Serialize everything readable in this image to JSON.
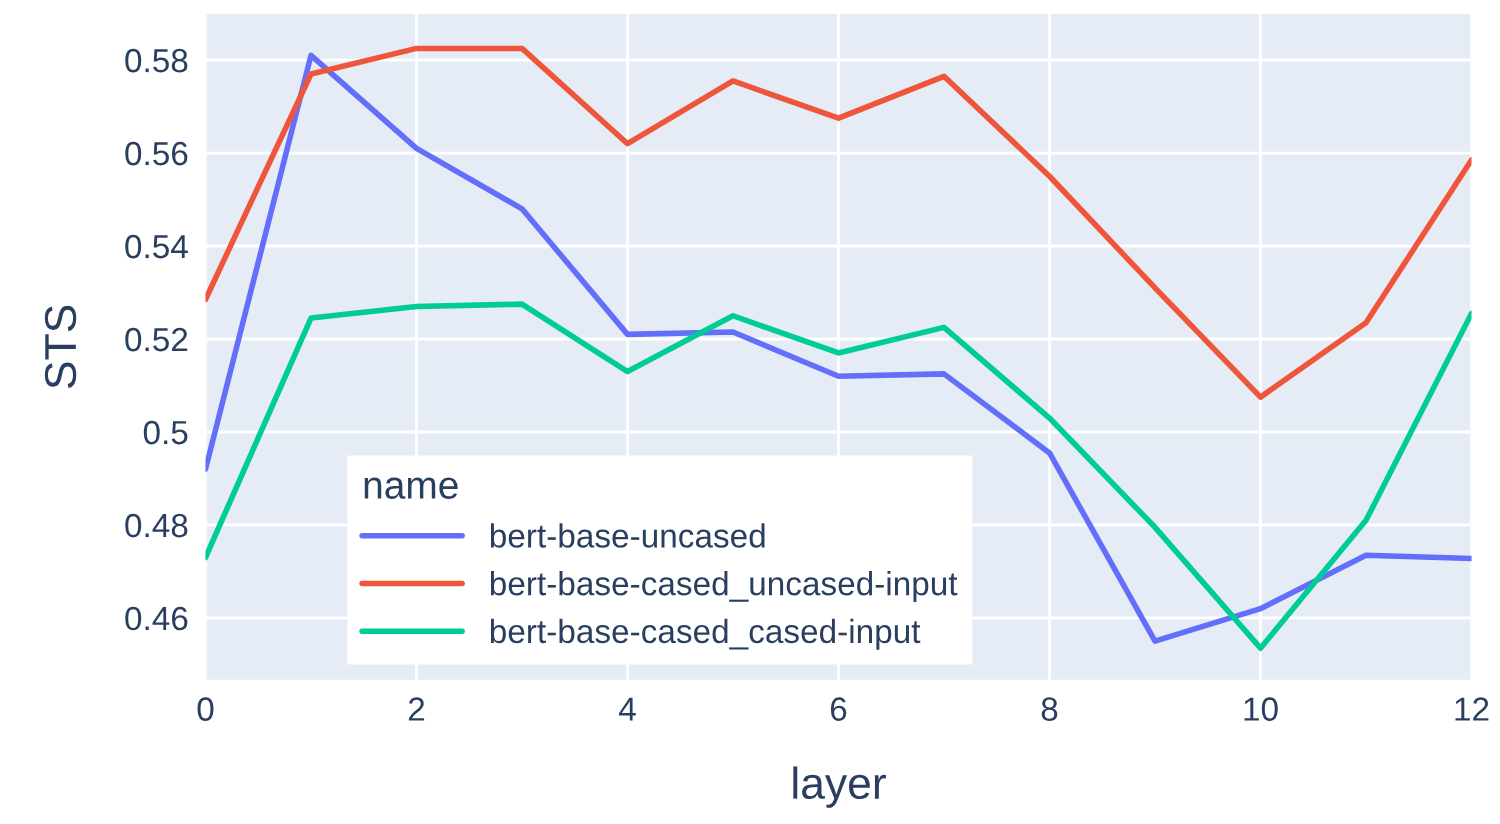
{
  "chart_data": {
    "type": "line",
    "xlabel": "layer",
    "ylabel": "STS",
    "legend_title": "name",
    "x": [
      0,
      1,
      2,
      3,
      4,
      5,
      6,
      7,
      8,
      9,
      10,
      11,
      12
    ],
    "series": [
      {
        "name": "bert-base-uncased",
        "color": "#636efa",
        "values": [
          0.492,
          0.581,
          0.561,
          0.548,
          0.521,
          0.5215,
          0.512,
          0.5125,
          0.4955,
          0.455,
          0.462,
          0.4735,
          0.4728
        ]
      },
      {
        "name": "bert-base-cased_uncased-input",
        "color": "#ef553b",
        "values": [
          0.5285,
          0.577,
          0.5825,
          0.5825,
          0.562,
          0.5755,
          0.5675,
          0.5765,
          0.555,
          0.531,
          0.5075,
          0.5235,
          0.5585
        ]
      },
      {
        "name": "bert-base-cased_cased-input",
        "color": "#00cc96",
        "values": [
          0.473,
          0.5245,
          0.527,
          0.5275,
          0.513,
          0.525,
          0.517,
          0.5225,
          0.503,
          0.4795,
          0.4535,
          0.481,
          0.5255
        ]
      }
    ],
    "xlim": [
      0,
      12
    ],
    "xticks": [
      0,
      2,
      4,
      6,
      8,
      10,
      12
    ],
    "ylim": [
      0.4467,
      0.5899
    ],
    "yticks": [
      0.46,
      0.48,
      {
        "value": 0.5,
        "label": "0.5"
      },
      0.52,
      0.54,
      0.56,
      0.58
    ],
    "grid": true,
    "legend": "bottom left",
    "marker": "none",
    "line_style": "solid"
  }
}
